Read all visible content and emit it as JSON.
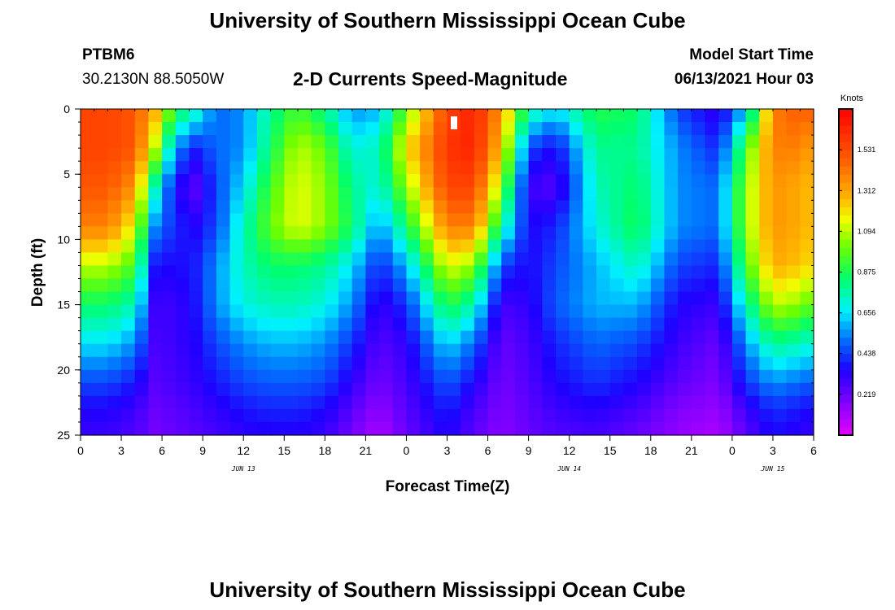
{
  "header": {
    "title": "University of Southern Mississippi Ocean Cube",
    "station": "PTBM6",
    "coords": "30.2130N  88.5050W",
    "subtitle": "2-D Currents Speed-Magnitude",
    "model_label": "Model Start Time",
    "model_time": "06/13/2021 Hour 03"
  },
  "footer": {
    "title": "University of Southern Mississippi Ocean Cube"
  },
  "chart_data": {
    "type": "heatmap",
    "title": "2-D Currents Speed-Magnitude",
    "xlabel": "Forecast Time(Z)",
    "ylabel": "Depth (ft)",
    "x_ticks": [
      "0",
      "3",
      "6",
      "9",
      "12",
      "15",
      "18",
      "21",
      "0",
      "3",
      "6",
      "9",
      "12",
      "15",
      "18",
      "21",
      "0",
      "3",
      "6"
    ],
    "x_range_hours": [
      0,
      54
    ],
    "date_labels": [
      {
        "label": "JUN 13",
        "hour": 12
      },
      {
        "label": "JUN 14",
        "hour": 36
      },
      {
        "label": "JUN 15",
        "hour": 51
      }
    ],
    "y_ticks": [
      "0",
      "5",
      "10",
      "15",
      "20",
      "25"
    ],
    "ylim": [
      0,
      25
    ],
    "y_inverted": true,
    "colorbar": {
      "unit": "Knots",
      "min": 0.0,
      "max": 1.75,
      "tick_labels": [
        "1.531",
        "1.312",
        "1.094",
        "0.875",
        "0.656",
        "0.438",
        "0.219"
      ],
      "tick_values": [
        1.531,
        1.312,
        1.094,
        0.875,
        0.656,
        0.438,
        0.219
      ]
    },
    "speed_field_knots": {
      "hours": [
        0,
        2,
        4,
        5.5,
        7,
        8.5,
        10,
        12,
        14,
        16,
        18,
        20,
        22,
        24,
        27,
        29,
        31,
        33,
        35,
        38,
        41,
        44,
        47,
        49,
        51,
        53,
        54
      ],
      "depths_ft": [
        0,
        3,
        6,
        9,
        12,
        15,
        18,
        21,
        23,
        25
      ],
      "values": [
        [
          1.55,
          1.55,
          1.5,
          1.3,
          0.9,
          0.75,
          0.5,
          0.55,
          0.8,
          0.95,
          0.8,
          0.55,
          0.6,
          1.0,
          1.55,
          1.65,
          1.35,
          0.8,
          0.65,
          0.9,
          0.85,
          0.45,
          0.3,
          0.6,
          1.4,
          1.5,
          1.45
        ],
        [
          1.55,
          1.55,
          1.5,
          1.1,
          0.55,
          0.4,
          0.5,
          0.55,
          0.85,
          1.1,
          1.0,
          0.7,
          0.75,
          1.2,
          1.6,
          1.65,
          1.25,
          0.45,
          0.35,
          0.8,
          0.8,
          0.55,
          0.4,
          0.95,
          1.4,
          1.4,
          1.3
        ],
        [
          1.5,
          1.5,
          1.35,
          0.75,
          0.35,
          0.25,
          0.45,
          0.65,
          0.95,
          1.15,
          1.05,
          0.8,
          0.7,
          1.05,
          1.55,
          1.55,
          1.05,
          0.3,
          0.25,
          0.75,
          0.85,
          0.55,
          0.5,
          1.05,
          1.35,
          1.3,
          1.25
        ],
        [
          1.4,
          1.4,
          1.15,
          0.55,
          0.4,
          0.35,
          0.45,
          0.75,
          1.0,
          1.15,
          1.05,
          0.85,
          0.55,
          0.85,
          1.4,
          1.4,
          0.8,
          0.35,
          0.4,
          0.7,
          0.88,
          0.55,
          0.5,
          1.05,
          1.35,
          1.3,
          1.25
        ],
        [
          1.1,
          1.1,
          0.95,
          0.38,
          0.35,
          0.4,
          0.55,
          0.75,
          0.85,
          0.85,
          0.8,
          0.65,
          0.4,
          0.6,
          1.15,
          1.05,
          0.45,
          0.35,
          0.45,
          0.6,
          0.75,
          0.45,
          0.4,
          0.95,
          1.3,
          1.25,
          1.2
        ],
        [
          0.85,
          0.85,
          0.75,
          0.3,
          0.3,
          0.38,
          0.55,
          0.7,
          0.75,
          0.75,
          0.7,
          0.55,
          0.3,
          0.42,
          0.9,
          0.75,
          0.28,
          0.32,
          0.48,
          0.6,
          0.6,
          0.35,
          0.3,
          0.75,
          1.1,
          1.05,
          0.95
        ],
        [
          0.65,
          0.65,
          0.55,
          0.28,
          0.3,
          0.35,
          0.45,
          0.55,
          0.6,
          0.6,
          0.55,
          0.42,
          0.25,
          0.32,
          0.65,
          0.5,
          0.22,
          0.28,
          0.4,
          0.5,
          0.45,
          0.3,
          0.22,
          0.55,
          0.8,
          0.75,
          0.7
        ],
        [
          0.45,
          0.45,
          0.38,
          0.25,
          0.28,
          0.32,
          0.38,
          0.45,
          0.48,
          0.48,
          0.45,
          0.32,
          0.2,
          0.28,
          0.48,
          0.35,
          0.2,
          0.26,
          0.35,
          0.42,
          0.35,
          0.24,
          0.18,
          0.42,
          0.55,
          0.5,
          0.48
        ],
        [
          0.35,
          0.35,
          0.3,
          0.22,
          0.25,
          0.28,
          0.32,
          0.38,
          0.4,
          0.4,
          0.36,
          0.25,
          0.15,
          0.25,
          0.4,
          0.28,
          0.18,
          0.24,
          0.3,
          0.34,
          0.28,
          0.18,
          0.14,
          0.3,
          0.42,
          0.38,
          0.36
        ],
        [
          0.3,
          0.3,
          0.26,
          0.2,
          0.22,
          0.25,
          0.28,
          0.32,
          0.34,
          0.34,
          0.3,
          0.2,
          0.1,
          0.22,
          0.35,
          0.24,
          0.16,
          0.22,
          0.26,
          0.28,
          0.22,
          0.14,
          0.1,
          0.24,
          0.36,
          0.32,
          0.3
        ]
      ]
    }
  }
}
